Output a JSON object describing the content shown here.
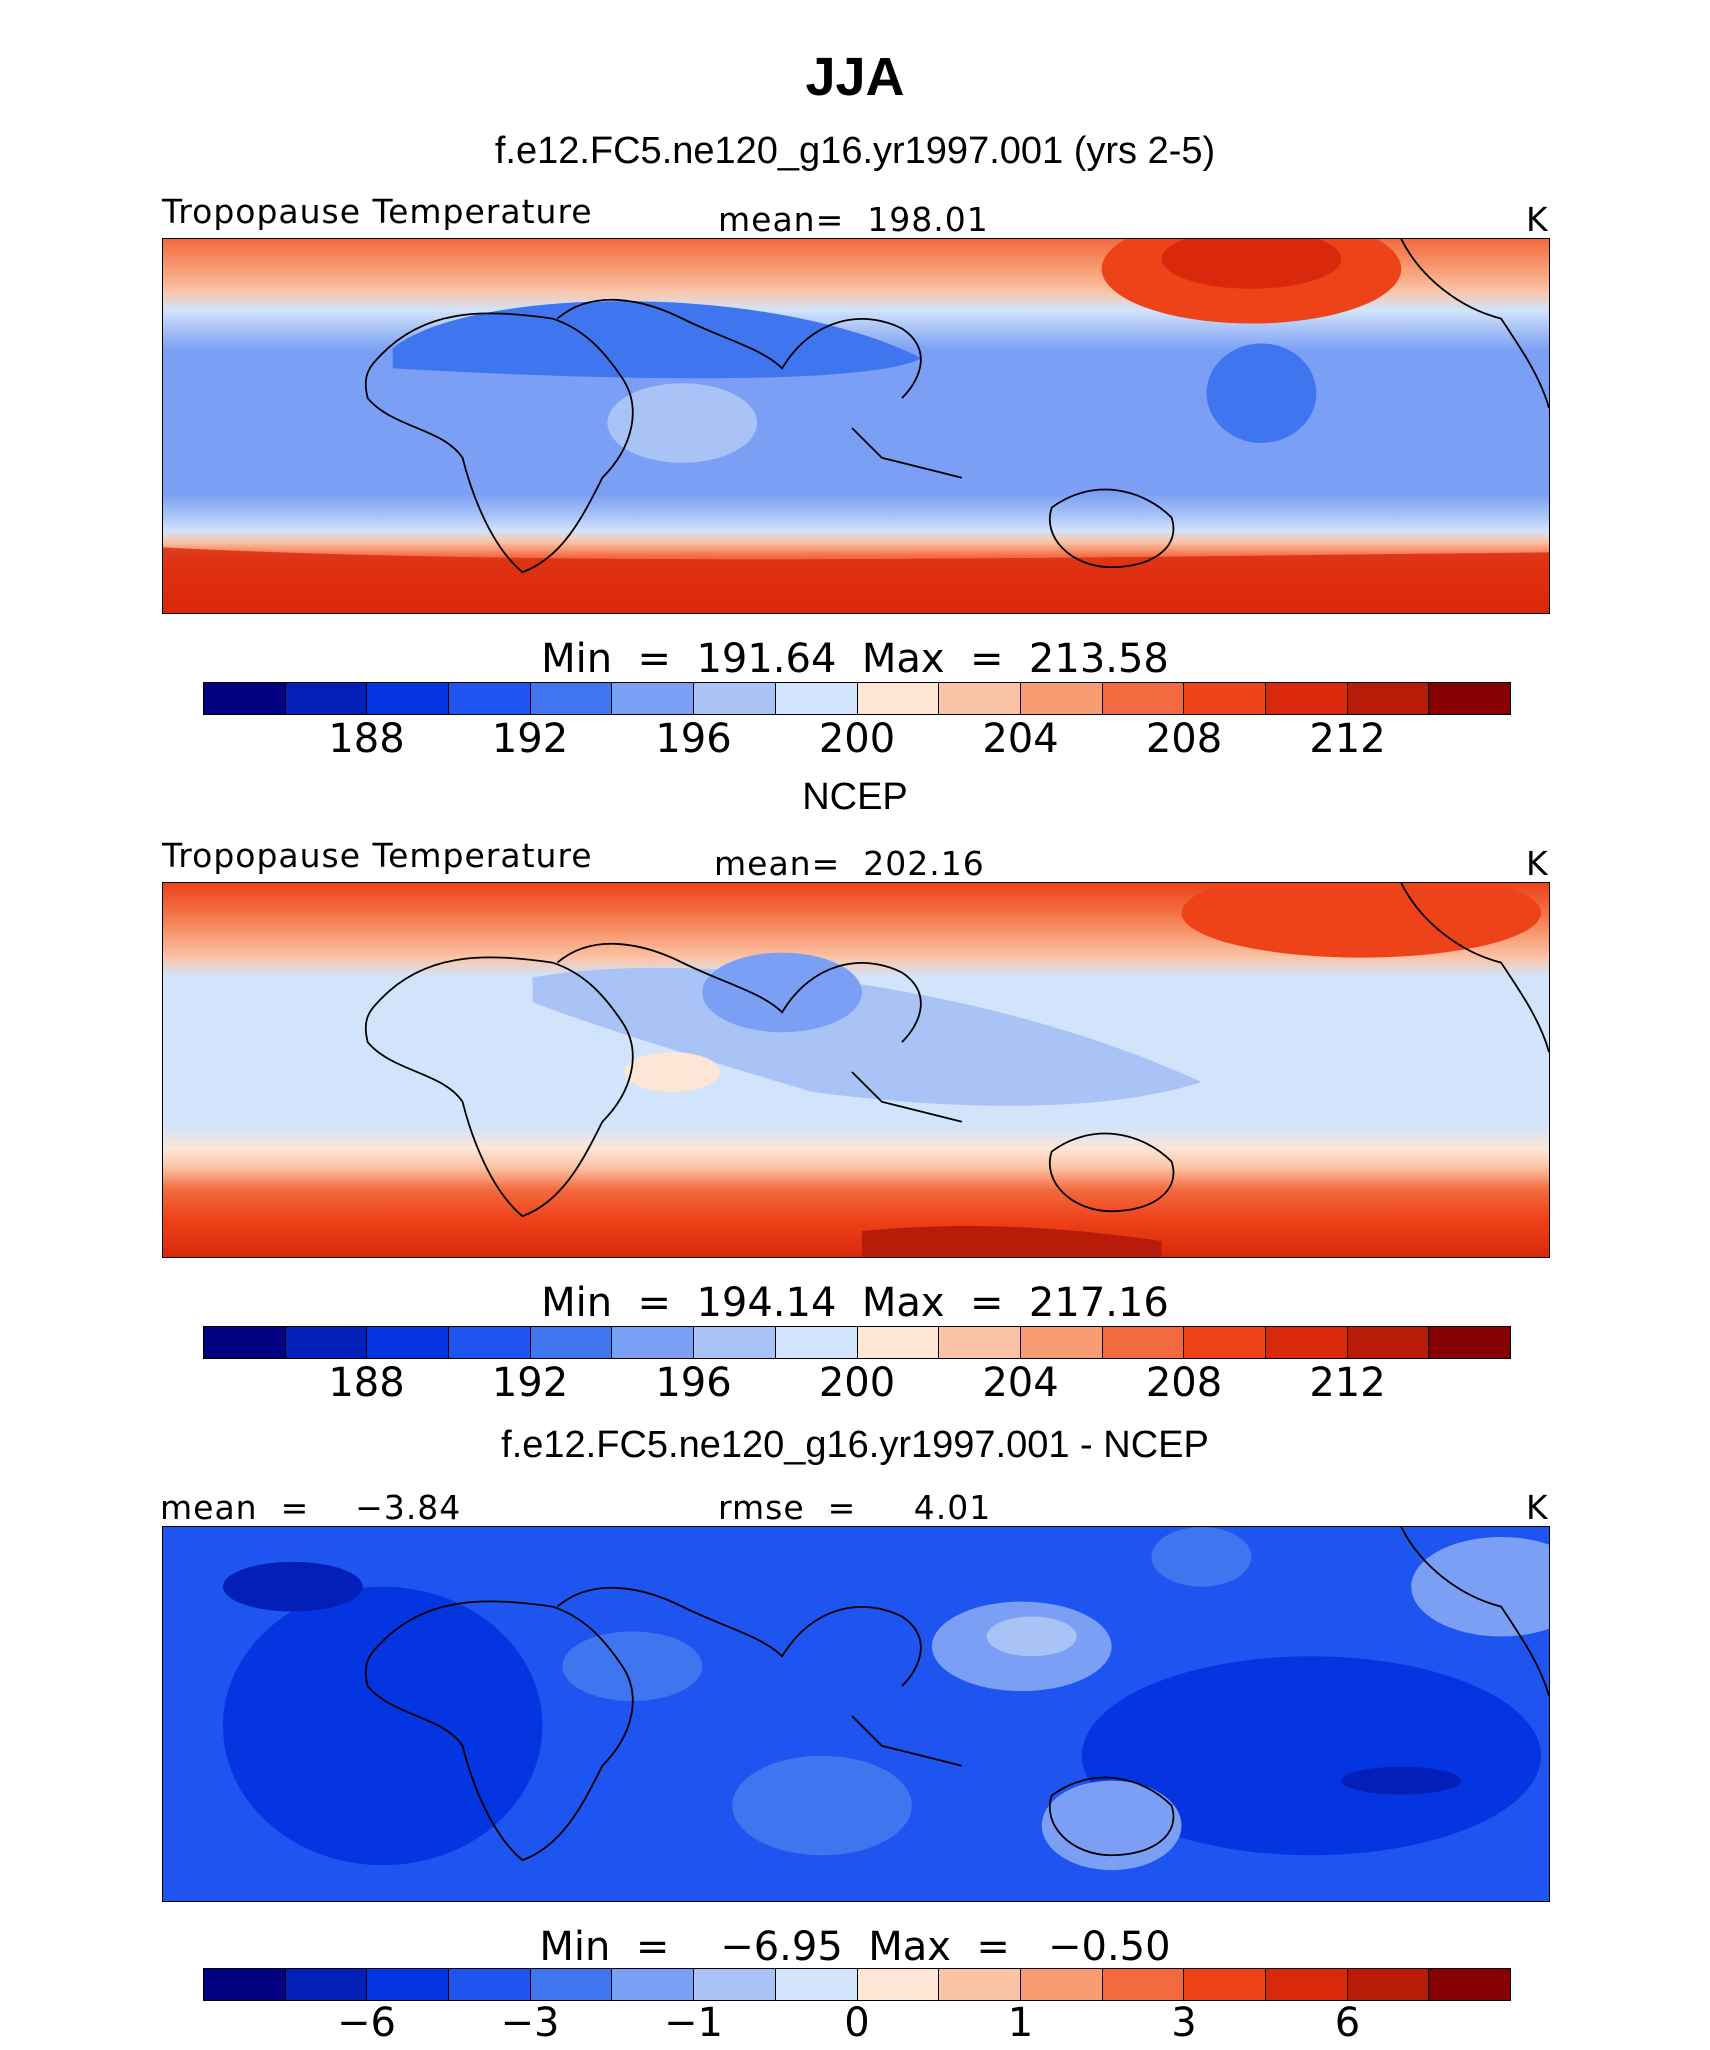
{
  "title": "JJA",
  "colors": [
    "#000080",
    "#0220b8",
    "#0535e0",
    "#1e55f0",
    "#3f76f0",
    "#7a9ff5",
    "#a9c3f7",
    "#d2e4fb",
    "#fde6d6",
    "#fbc4a6",
    "#f89c74",
    "#f46a40",
    "#ee4219",
    "#d9280b",
    "#b81c08",
    "#850000"
  ],
  "panels": [
    {
      "subtitle": "f.e12.FC5.ne120_g16.yr1997.001 (yrs 2-5)",
      "left_label": "Tropopause Temperature",
      "center_label": "mean=  198.01",
      "units": "K",
      "min_text": "Min  =  191.64  Max  =  213.58",
      "tick_labels": [
        "188",
        "192",
        "196",
        "200",
        "204",
        "208",
        "212"
      ]
    },
    {
      "subtitle": "NCEP",
      "left_label": "Tropopause Temperature",
      "center_label": "mean=  202.16",
      "units": "K",
      "min_text": "Min  =  194.14  Max  =  217.16",
      "tick_labels": [
        "188",
        "192",
        "196",
        "200",
        "204",
        "208",
        "212"
      ]
    },
    {
      "subtitle": "f.e12.FC5.ne120_g16.yr1997.001 - NCEP",
      "left_label": "mean  =    −3.84",
      "center_label": "rmse  =     4.01",
      "units": "K",
      "min_text": "Min  =    −6.95  Max  =   −0.50",
      "tick_labels": [
        "−6",
        "−3",
        "−1",
        "0",
        "1",
        "3",
        "6"
      ]
    }
  ]
}
